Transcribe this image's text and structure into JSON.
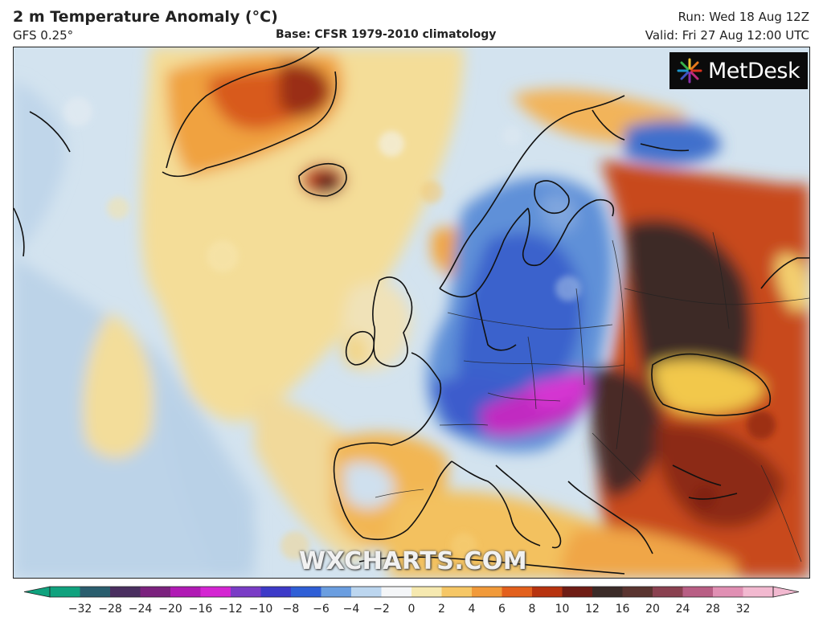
{
  "header": {
    "title": "2 m Temperature Anomaly (°C)",
    "model": "GFS 0.25°",
    "base": "Base: CFSR 1979-2010 climatology",
    "run": "Run: Wed 18 Aug 12Z",
    "valid": "Valid: Fri 27 Aug 12:00 UTC"
  },
  "logo": {
    "text": "MetDesk",
    "icon": "starburst-logo-icon"
  },
  "watermark": "WXCHARTS.COM",
  "colorbar": {
    "ticks": [
      "−32",
      "−28",
      "−24",
      "−20",
      "−16",
      "−12",
      "−10",
      "−8",
      "−6",
      "−4",
      "−2",
      "0",
      "2",
      "4",
      "6",
      "8",
      "10",
      "12",
      "16",
      "20",
      "24",
      "28",
      "32"
    ],
    "colors": [
      "#10a27e",
      "#2a5e6e",
      "#4a2f60",
      "#7b227e",
      "#b01ab4",
      "#d425d2",
      "#7a3cc6",
      "#3d3ac8",
      "#2f5fd6",
      "#6b9ee0",
      "#bcd6ef",
      "#f4f6f8",
      "#f6e9b0",
      "#f6c766",
      "#f19a3a",
      "#e3601d",
      "#b7330f",
      "#6f1d15",
      "#3b2b28",
      "#5a3430",
      "#8a4150",
      "#b85e84",
      "#e08fb3",
      "#f2b9d0"
    ]
  },
  "map": {
    "colors": {
      "ocean_neutral": "#cfe0ee",
      "pale_blue": "#b7d0e6",
      "warm_yellow": "#f6dc8e",
      "orange": "#f0a646",
      "red": "#c8481b",
      "dark_brown": "#3c2a28",
      "blue": "#4f82d2",
      "deep_blue": "#2e4fc0",
      "magenta": "#c22bc3",
      "purple": "#6a3cc4"
    }
  }
}
